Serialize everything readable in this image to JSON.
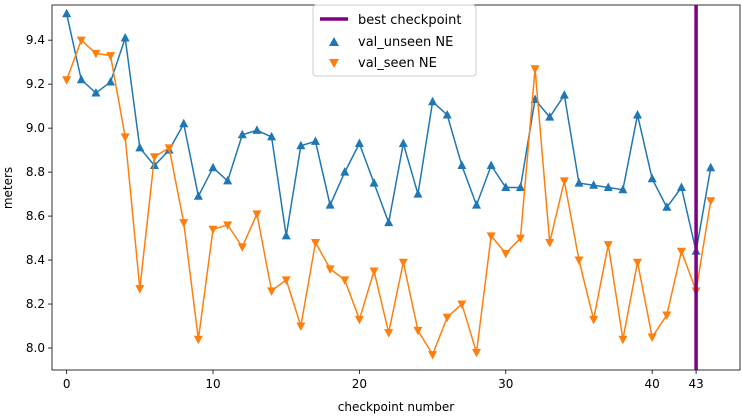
{
  "chart_data": {
    "type": "line",
    "xlabel": "checkpoint number",
    "ylabel": "meters",
    "xlim": [
      -1,
      46
    ],
    "ylim": [
      7.9,
      9.56
    ],
    "xticks": [
      0,
      10,
      20,
      30,
      40,
      43
    ],
    "yticks": [
      8.0,
      8.2,
      8.4,
      8.6,
      8.8,
      9.0,
      9.2,
      9.4
    ],
    "legend_position": "top-center",
    "vline": {
      "name": "best checkpoint",
      "x": 43,
      "color": "#800080"
    },
    "series": [
      {
        "name": "val_unseen NE",
        "color": "#1f77b4",
        "marker": "triangle-up",
        "x": [
          0,
          1,
          2,
          3,
          4,
          5,
          6,
          7,
          8,
          9,
          10,
          11,
          12,
          13,
          14,
          15,
          16,
          17,
          18,
          19,
          20,
          21,
          22,
          23,
          24,
          25,
          26,
          27,
          28,
          29,
          30,
          31,
          32,
          33,
          34,
          35,
          36,
          37,
          38,
          39,
          40,
          41,
          42,
          43,
          44
        ],
        "values": [
          9.52,
          9.22,
          9.16,
          9.21,
          9.41,
          8.91,
          8.83,
          8.9,
          9.02,
          8.69,
          8.82,
          8.76,
          8.97,
          8.99,
          8.96,
          8.51,
          8.92,
          8.94,
          8.65,
          8.8,
          8.93,
          8.75,
          8.57,
          8.93,
          8.7,
          9.12,
          9.06,
          8.83,
          8.65,
          8.83,
          8.73,
          8.73,
          9.13,
          9.05,
          9.15,
          8.75,
          8.74,
          8.73,
          8.72,
          9.06,
          8.77,
          8.64,
          8.73,
          8.44,
          8.82
        ]
      },
      {
        "name": "val_seen NE",
        "color": "#ff7f0e",
        "marker": "triangle-down",
        "x": [
          0,
          1,
          2,
          3,
          4,
          5,
          6,
          7,
          8,
          9,
          10,
          11,
          12,
          13,
          14,
          15,
          16,
          17,
          18,
          19,
          20,
          21,
          22,
          23,
          24,
          25,
          26,
          27,
          28,
          29,
          30,
          31,
          32,
          33,
          34,
          35,
          36,
          37,
          38,
          39,
          40,
          41,
          42,
          43,
          44
        ],
        "values": [
          9.22,
          9.4,
          9.34,
          9.33,
          8.96,
          8.27,
          8.87,
          8.91,
          8.57,
          8.04,
          8.54,
          8.56,
          8.46,
          8.61,
          8.26,
          8.31,
          8.1,
          8.48,
          8.36,
          8.31,
          8.13,
          8.35,
          8.07,
          8.39,
          8.08,
          7.97,
          8.14,
          8.2,
          7.98,
          8.51,
          8.43,
          8.5,
          9.27,
          8.48,
          8.76,
          8.4,
          8.13,
          8.47,
          8.04,
          8.39,
          8.05,
          8.15,
          8.44,
          8.26,
          8.67
        ]
      }
    ]
  }
}
